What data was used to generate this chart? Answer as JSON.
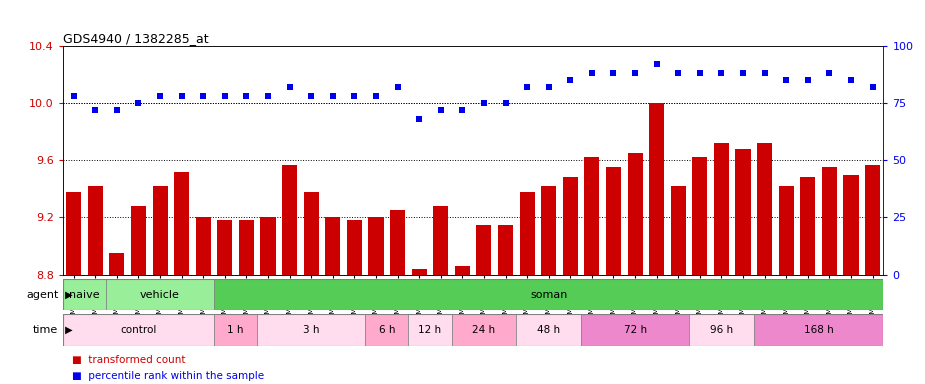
{
  "title": "GDS4940 / 1382285_at",
  "samples": [
    "GSM338857",
    "GSM338858",
    "GSM338859",
    "GSM338862",
    "GSM338864",
    "GSM338877",
    "GSM338880",
    "GSM338860",
    "GSM338861",
    "GSM338863",
    "GSM338865",
    "GSM338866",
    "GSM338867",
    "GSM338868",
    "GSM338869",
    "GSM338870",
    "GSM338871",
    "GSM338872",
    "GSM338873",
    "GSM338874",
    "GSM338875",
    "GSM338876",
    "GSM338878",
    "GSM338879",
    "GSM338881",
    "GSM338882",
    "GSM338883",
    "GSM338884",
    "GSM338885",
    "GSM338886",
    "GSM338887",
    "GSM338888",
    "GSM338889",
    "GSM338890",
    "GSM338891",
    "GSM338892",
    "GSM338893",
    "GSM338894"
  ],
  "bar_values": [
    9.38,
    9.42,
    8.95,
    9.28,
    9.42,
    9.52,
    9.2,
    9.18,
    9.18,
    9.2,
    9.57,
    9.38,
    9.2,
    9.18,
    9.2,
    9.25,
    8.84,
    9.28,
    8.86,
    9.15,
    9.15,
    9.38,
    9.42,
    9.48,
    9.62,
    9.55,
    9.65,
    10.0,
    9.42,
    9.62,
    9.72,
    9.68,
    9.72,
    9.42,
    9.48,
    9.55,
    9.5,
    9.57
  ],
  "dot_values": [
    78,
    72,
    72,
    75,
    78,
    78,
    78,
    78,
    78,
    78,
    82,
    78,
    78,
    78,
    78,
    82,
    68,
    72,
    72,
    75,
    75,
    82,
    82,
    85,
    88,
    88,
    88,
    92,
    88,
    88,
    88,
    88,
    88,
    85,
    85,
    88,
    85,
    82
  ],
  "bar_color": "#cc0000",
  "dot_color": "#0000ee",
  "ylim_left": [
    8.8,
    10.4
  ],
  "ylim_right": [
    0,
    100
  ],
  "yticks_left": [
    8.8,
    9.2,
    9.6,
    10.0,
    10.4
  ],
  "yticks_right": [
    0,
    25,
    50,
    75,
    100
  ],
  "grid_values": [
    9.2,
    9.6,
    10.0
  ],
  "agent_groups": [
    {
      "label": "naive",
      "start": 0,
      "end": 2,
      "color": "#99ee99"
    },
    {
      "label": "vehicle",
      "start": 2,
      "end": 7,
      "color": "#99ee99"
    },
    {
      "label": "soman",
      "start": 7,
      "end": 38,
      "color": "#55cc55"
    }
  ],
  "time_groups": [
    {
      "label": "control",
      "start": 0,
      "end": 7,
      "color": "#ffddee"
    },
    {
      "label": "1 h",
      "start": 7,
      "end": 9,
      "color": "#ffaacc"
    },
    {
      "label": "3 h",
      "start": 9,
      "end": 14,
      "color": "#ffddee"
    },
    {
      "label": "6 h",
      "start": 14,
      "end": 16,
      "color": "#ffaacc"
    },
    {
      "label": "12 h",
      "start": 16,
      "end": 18,
      "color": "#ffddee"
    },
    {
      "label": "24 h",
      "start": 18,
      "end": 21,
      "color": "#ffaacc"
    },
    {
      "label": "48 h",
      "start": 21,
      "end": 24,
      "color": "#ffddee"
    },
    {
      "label": "72 h",
      "start": 24,
      "end": 29,
      "color": "#ee88cc"
    },
    {
      "label": "96 h",
      "start": 29,
      "end": 32,
      "color": "#ffddee"
    },
    {
      "label": "168 h",
      "start": 32,
      "end": 38,
      "color": "#ee88cc"
    }
  ],
  "legend_bar": "transformed count",
  "legend_dot": "percentile rank within the sample"
}
